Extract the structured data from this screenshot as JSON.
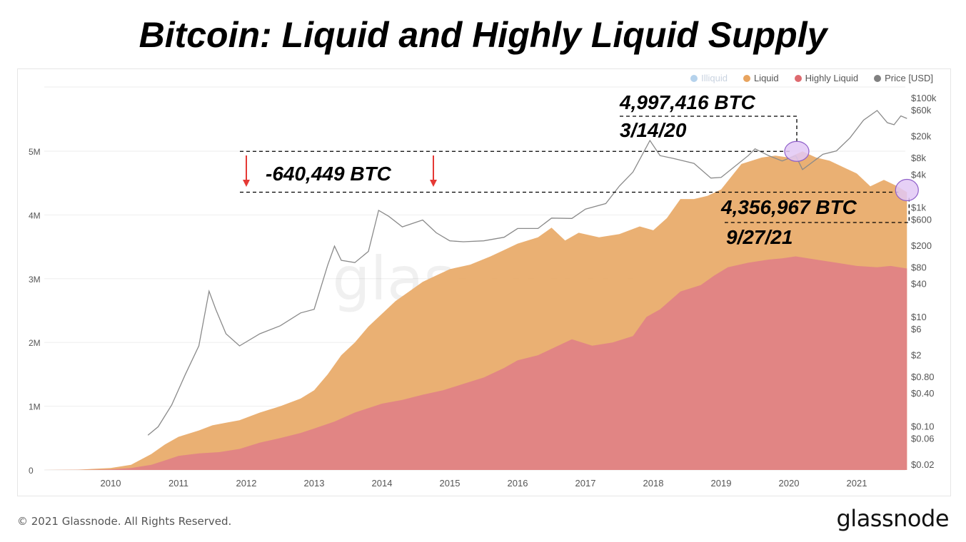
{
  "page": {
    "title": "Bitcoin: Liquid and Highly Liquid Supply",
    "footer": "© 2021 Glassnode. All Rights Reserved.",
    "logo": "glassnode",
    "watermark": "glassnode"
  },
  "legend": [
    {
      "name": "Illiquid",
      "color": "#5b9bd5",
      "muted": true
    },
    {
      "name": "Liquid",
      "color": "#e8a45f",
      "muted": false
    },
    {
      "name": "Highly Liquid",
      "color": "#de6a6f",
      "muted": false
    },
    {
      "name": "Price [USD]",
      "color": "#808080",
      "muted": false
    }
  ],
  "colors": {
    "liquid": "#e9ac6c",
    "highly_liquid": "#e08385",
    "price": "#8a8a8a",
    "annotation": "#000000",
    "arrow": "#e53935",
    "circle_fill": "#e2c8f5",
    "circle_stroke": "#8e5fc9",
    "grid": "#eeeeee",
    "tick": "#555555"
  },
  "chart_data": {
    "type": "area",
    "x_axis": {
      "ticks": [
        "2010",
        "2011",
        "2012",
        "2013",
        "2014",
        "2015",
        "2016",
        "2017",
        "2018",
        "2019",
        "2020",
        "2021"
      ],
      "range": [
        2009.0,
        2021.75
      ]
    },
    "y_left": {
      "ticks": [
        "0",
        "1M",
        "2M",
        "3M",
        "4M",
        "5M"
      ],
      "range": [
        0,
        5000000
      ]
    },
    "y_right": {
      "scale": "log",
      "ticks": [
        "$100k",
        "$60k",
        "$20k",
        "$8k",
        "$4k",
        "$1k",
        "$600",
        "$200",
        "$80",
        "$40",
        "$10",
        "$6",
        "$2",
        "$0.80",
        "$0.40",
        "$0.10",
        "$0.06",
        "$0.02"
      ]
    },
    "series": [
      {
        "name": "Liquid",
        "type": "area",
        "points": [
          [
            2009.0,
            0
          ],
          [
            2009.5,
            5000
          ],
          [
            2010.0,
            30000
          ],
          [
            2010.3,
            80000
          ],
          [
            2010.6,
            250000
          ],
          [
            2010.8,
            400000
          ],
          [
            2011.0,
            520000
          ],
          [
            2011.3,
            620000
          ],
          [
            2011.5,
            700000
          ],
          [
            2011.7,
            740000
          ],
          [
            2011.9,
            780000
          ],
          [
            2012.2,
            900000
          ],
          [
            2012.5,
            1000000
          ],
          [
            2012.8,
            1120000
          ],
          [
            2013.0,
            1250000
          ],
          [
            2013.2,
            1500000
          ],
          [
            2013.4,
            1800000
          ],
          [
            2013.6,
            2000000
          ],
          [
            2013.8,
            2250000
          ],
          [
            2014.0,
            2450000
          ],
          [
            2014.2,
            2650000
          ],
          [
            2014.4,
            2800000
          ],
          [
            2014.6,
            2950000
          ],
          [
            2014.8,
            3050000
          ],
          [
            2015.0,
            3150000
          ],
          [
            2015.3,
            3220000
          ],
          [
            2015.6,
            3350000
          ],
          [
            2015.8,
            3450000
          ],
          [
            2016.0,
            3550000
          ],
          [
            2016.3,
            3650000
          ],
          [
            2016.5,
            3800000
          ],
          [
            2016.7,
            3600000
          ],
          [
            2016.9,
            3720000
          ],
          [
            2017.2,
            3650000
          ],
          [
            2017.5,
            3700000
          ],
          [
            2017.8,
            3820000
          ],
          [
            2018.0,
            3760000
          ],
          [
            2018.2,
            3950000
          ],
          [
            2018.4,
            4250000
          ],
          [
            2018.6,
            4250000
          ],
          [
            2018.8,
            4300000
          ],
          [
            2019.0,
            4400000
          ],
          [
            2019.3,
            4800000
          ],
          [
            2019.6,
            4900000
          ],
          [
            2019.8,
            4930000
          ],
          [
            2020.0,
            4900000
          ],
          [
            2020.2,
            4997416
          ],
          [
            2020.4,
            4900000
          ],
          [
            2020.6,
            4850000
          ],
          [
            2020.8,
            4750000
          ],
          [
            2021.0,
            4650000
          ],
          [
            2021.2,
            4450000
          ],
          [
            2021.4,
            4550000
          ],
          [
            2021.6,
            4450000
          ],
          [
            2021.74,
            4356967
          ]
        ]
      },
      {
        "name": "Highly Liquid",
        "type": "area",
        "points": [
          [
            2009.0,
            0
          ],
          [
            2009.6,
            2000
          ],
          [
            2010.0,
            10000
          ],
          [
            2010.3,
            30000
          ],
          [
            2010.6,
            80000
          ],
          [
            2010.8,
            150000
          ],
          [
            2011.0,
            220000
          ],
          [
            2011.3,
            260000
          ],
          [
            2011.6,
            280000
          ],
          [
            2011.9,
            330000
          ],
          [
            2012.2,
            430000
          ],
          [
            2012.5,
            500000
          ],
          [
            2012.8,
            580000
          ],
          [
            2013.0,
            650000
          ],
          [
            2013.3,
            760000
          ],
          [
            2013.6,
            900000
          ],
          [
            2014.0,
            1040000
          ],
          [
            2014.3,
            1100000
          ],
          [
            2014.6,
            1180000
          ],
          [
            2014.9,
            1250000
          ],
          [
            2015.2,
            1350000
          ],
          [
            2015.5,
            1450000
          ],
          [
            2015.8,
            1600000
          ],
          [
            2016.0,
            1720000
          ],
          [
            2016.3,
            1800000
          ],
          [
            2016.5,
            1900000
          ],
          [
            2016.8,
            2050000
          ],
          [
            2017.1,
            1950000
          ],
          [
            2017.4,
            2000000
          ],
          [
            2017.7,
            2100000
          ],
          [
            2017.9,
            2400000
          ],
          [
            2018.1,
            2520000
          ],
          [
            2018.4,
            2800000
          ],
          [
            2018.7,
            2900000
          ],
          [
            2018.9,
            3050000
          ],
          [
            2019.1,
            3180000
          ],
          [
            2019.4,
            3250000
          ],
          [
            2019.7,
            3300000
          ],
          [
            2019.9,
            3320000
          ],
          [
            2020.1,
            3350000
          ],
          [
            2020.4,
            3300000
          ],
          [
            2020.7,
            3250000
          ],
          [
            2021.0,
            3200000
          ],
          [
            2021.3,
            3180000
          ],
          [
            2021.5,
            3200000
          ],
          [
            2021.74,
            3160000
          ]
        ]
      },
      {
        "name": "Price [USD]",
        "type": "line",
        "scale": "log",
        "points": [
          [
            2010.55,
            0.07
          ],
          [
            2010.7,
            0.1
          ],
          [
            2010.9,
            0.25
          ],
          [
            2011.1,
            0.9
          ],
          [
            2011.3,
            3
          ],
          [
            2011.45,
            30
          ],
          [
            2011.55,
            14
          ],
          [
            2011.7,
            5
          ],
          [
            2011.9,
            3
          ],
          [
            2012.2,
            5
          ],
          [
            2012.5,
            7
          ],
          [
            2012.8,
            12
          ],
          [
            2013.0,
            14
          ],
          [
            2013.2,
            90
          ],
          [
            2013.3,
            200
          ],
          [
            2013.4,
            110
          ],
          [
            2013.6,
            100
          ],
          [
            2013.8,
            160
          ],
          [
            2013.95,
            900
          ],
          [
            2014.1,
            700
          ],
          [
            2014.3,
            450
          ],
          [
            2014.6,
            600
          ],
          [
            2014.8,
            350
          ],
          [
            2015.0,
            250
          ],
          [
            2015.2,
            240
          ],
          [
            2015.5,
            250
          ],
          [
            2015.8,
            290
          ],
          [
            2016.0,
            420
          ],
          [
            2016.3,
            420
          ],
          [
            2016.5,
            650
          ],
          [
            2016.8,
            640
          ],
          [
            2017.0,
            950
          ],
          [
            2017.3,
            1200
          ],
          [
            2017.5,
            2500
          ],
          [
            2017.7,
            4500
          ],
          [
            2017.95,
            17000
          ],
          [
            2018.1,
            9000
          ],
          [
            2018.3,
            8000
          ],
          [
            2018.6,
            6500
          ],
          [
            2018.85,
            3500
          ],
          [
            2019.0,
            3600
          ],
          [
            2019.4,
            9000
          ],
          [
            2019.5,
            12000
          ],
          [
            2019.7,
            9000
          ],
          [
            2019.9,
            7200
          ],
          [
            2020.1,
            9000
          ],
          [
            2020.2,
            5000
          ],
          [
            2020.5,
            9500
          ],
          [
            2020.7,
            11000
          ],
          [
            2020.9,
            19000
          ],
          [
            2021.1,
            40000
          ],
          [
            2021.3,
            60000
          ],
          [
            2021.45,
            36000
          ],
          [
            2021.55,
            33000
          ],
          [
            2021.65,
            48000
          ],
          [
            2021.74,
            43000
          ]
        ]
      }
    ],
    "annotations": [
      {
        "text": "4,997,416 BTC",
        "date": "3/14/20",
        "x": 2020.2,
        "y": 4997416
      },
      {
        "text": "4,356,967 BTC",
        "date": "9/27/21",
        "x": 2021.74,
        "y": 4356967
      },
      {
        "text": "-640,449 BTC",
        "type": "difference"
      }
    ]
  }
}
